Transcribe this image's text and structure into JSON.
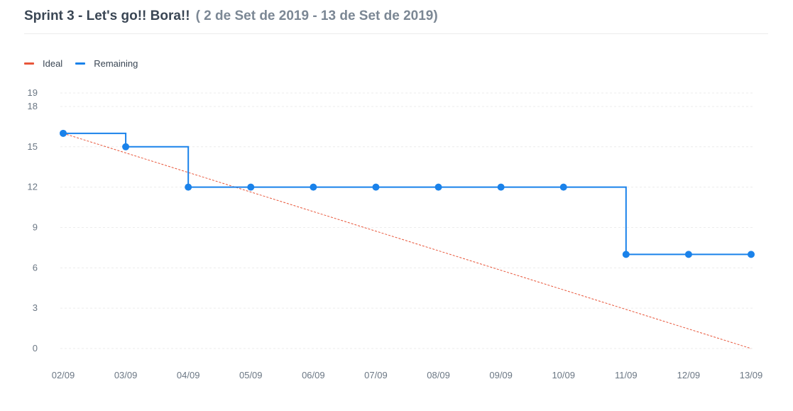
{
  "header": {
    "title": "Sprint 3 - Let's go!! Bora!!",
    "date_range": "( 2 de Set de 2019 - 13 de Set de 2019)"
  },
  "colors": {
    "ideal": "#e8563a",
    "remaining": "#1a82ea",
    "grid": "#ececec",
    "title": "#3a4654",
    "subtitle": "#7b8794",
    "tick": "#6b7784"
  },
  "chart_data": {
    "type": "line",
    "title": "",
    "xlabel": "",
    "ylabel": "",
    "categories": [
      "02/09",
      "03/09",
      "04/09",
      "05/09",
      "06/09",
      "07/09",
      "08/09",
      "09/09",
      "10/09",
      "11/09",
      "12/09",
      "13/09"
    ],
    "ylim": [
      0,
      19
    ],
    "yticks": [
      0,
      3,
      6,
      9,
      12,
      15,
      18,
      19
    ],
    "grid": true,
    "legend_position": "top-left",
    "series": [
      {
        "name": "Ideal",
        "style": "dashed-line",
        "color": "#e8563a",
        "values": [
          16,
          14.545,
          13.091,
          11.636,
          10.182,
          8.727,
          7.273,
          5.818,
          4.364,
          2.909,
          1.455,
          0
        ]
      },
      {
        "name": "Remaining",
        "style": "step-line-with-markers",
        "color": "#1a82ea",
        "values": [
          16,
          15,
          12,
          12,
          12,
          12,
          12,
          12,
          12,
          7,
          7,
          7
        ]
      }
    ]
  }
}
